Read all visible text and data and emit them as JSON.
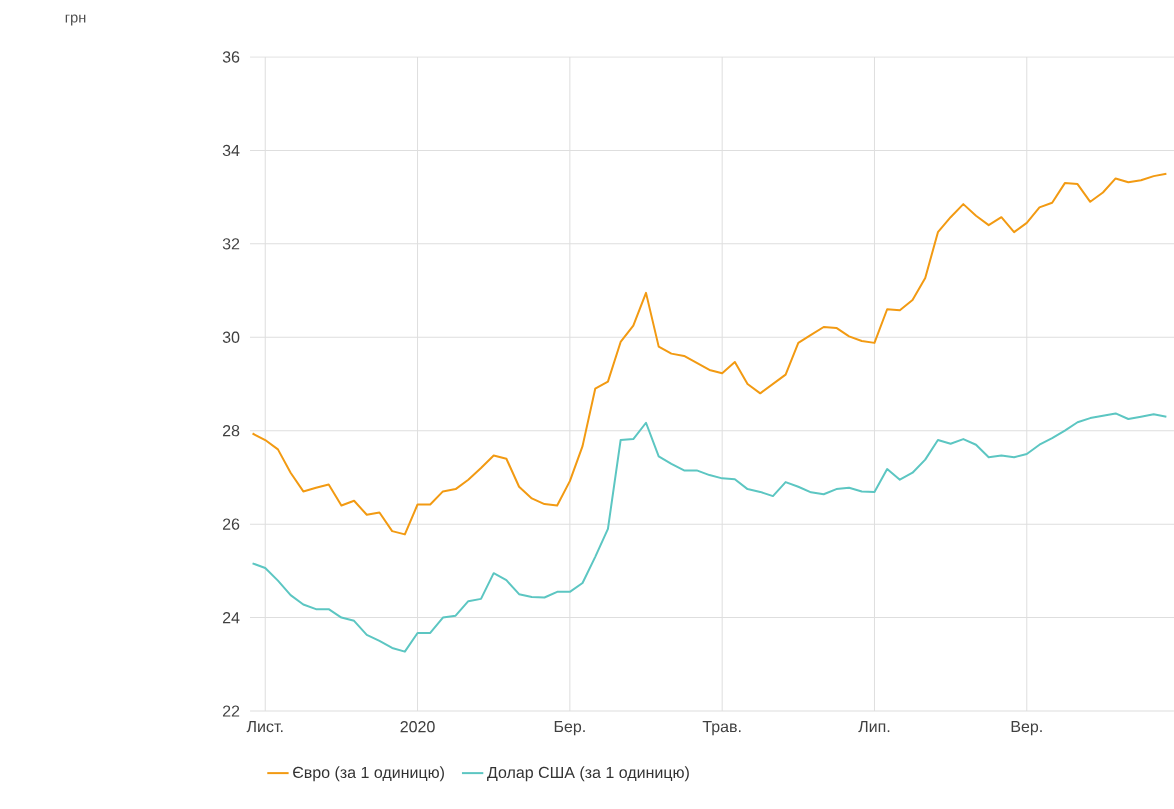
{
  "chart_data": {
    "type": "line",
    "annotations": [
      "грн"
    ],
    "categories": [
      null,
      "Лист.",
      null,
      null,
      null,
      null,
      null,
      null,
      null,
      null,
      null,
      null,
      null,
      "2020",
      null,
      null,
      null,
      null,
      null,
      null,
      null,
      null,
      null,
      null,
      null,
      "Бер.",
      null,
      null,
      null,
      null,
      null,
      null,
      null,
      null,
      null,
      null,
      null,
      "Трав.",
      null,
      null,
      null,
      null,
      null,
      null,
      null,
      null,
      null,
      null,
      null,
      "Лип.",
      null,
      null,
      null,
      null,
      null,
      null,
      null,
      null,
      null,
      null,
      null,
      "Вер.",
      null,
      null,
      null,
      null,
      null,
      null,
      null,
      null,
      null,
      null,
      null
    ],
    "series": [
      {
        "name": "Євро (за 1 одиницю)",
        "color": "#f29a12",
        "values": [
          27.94,
          27.8,
          27.6,
          27.1,
          26.7,
          26.78,
          26.85,
          26.4,
          26.5,
          26.2,
          26.25,
          25.85,
          25.78,
          26.42,
          26.42,
          26.7,
          26.75,
          26.95,
          27.2,
          27.47,
          27.4,
          26.8,
          26.55,
          26.43,
          26.4,
          26.92,
          27.67,
          28.9,
          29.05,
          29.9,
          30.25,
          30.95,
          29.8,
          29.65,
          29.6,
          29.45,
          29.3,
          29.23,
          29.47,
          29.0,
          28.8,
          29.0,
          29.2,
          29.88,
          30.05,
          30.22,
          30.2,
          30.02,
          29.92,
          29.88,
          30.6,
          30.58,
          30.8,
          31.27,
          32.25,
          32.57,
          32.85,
          32.6,
          32.4,
          32.57,
          32.25,
          32.45,
          32.78,
          32.88,
          33.3,
          33.28,
          32.9,
          33.1,
          33.4,
          33.32,
          33.36,
          33.45,
          33.5
        ]
      },
      {
        "name": "Долар США (за 1 одиницю)",
        "color": "#5cc6c2",
        "values": [
          25.16,
          25.06,
          24.79,
          24.48,
          24.28,
          24.18,
          24.18,
          24.0,
          23.93,
          23.63,
          23.5,
          23.35,
          23.27,
          23.67,
          23.67,
          24.0,
          24.04,
          24.35,
          24.4,
          24.95,
          24.8,
          24.5,
          24.44,
          24.43,
          24.55,
          24.55,
          24.74,
          25.3,
          25.9,
          27.8,
          27.82,
          28.17,
          27.45,
          27.29,
          27.15,
          27.15,
          27.05,
          26.98,
          26.96,
          26.75,
          26.69,
          26.6,
          26.9,
          26.8,
          26.68,
          26.64,
          26.75,
          26.78,
          26.7,
          26.69,
          27.18,
          26.95,
          27.1,
          27.38,
          27.8,
          27.72,
          27.82,
          27.7,
          27.43,
          27.47,
          27.43,
          27.5,
          27.7,
          27.84,
          28.0,
          28.18,
          28.27,
          28.32,
          28.37,
          28.25,
          28.3,
          28.35,
          28.3
        ]
      }
    ],
    "ylim": [
      22,
      36
    ],
    "yticks": [
      22,
      24,
      26,
      28,
      30,
      32,
      34,
      36
    ],
    "grid": true,
    "legend": "bottom left",
    "marker": "none",
    "line_style": "solid"
  }
}
